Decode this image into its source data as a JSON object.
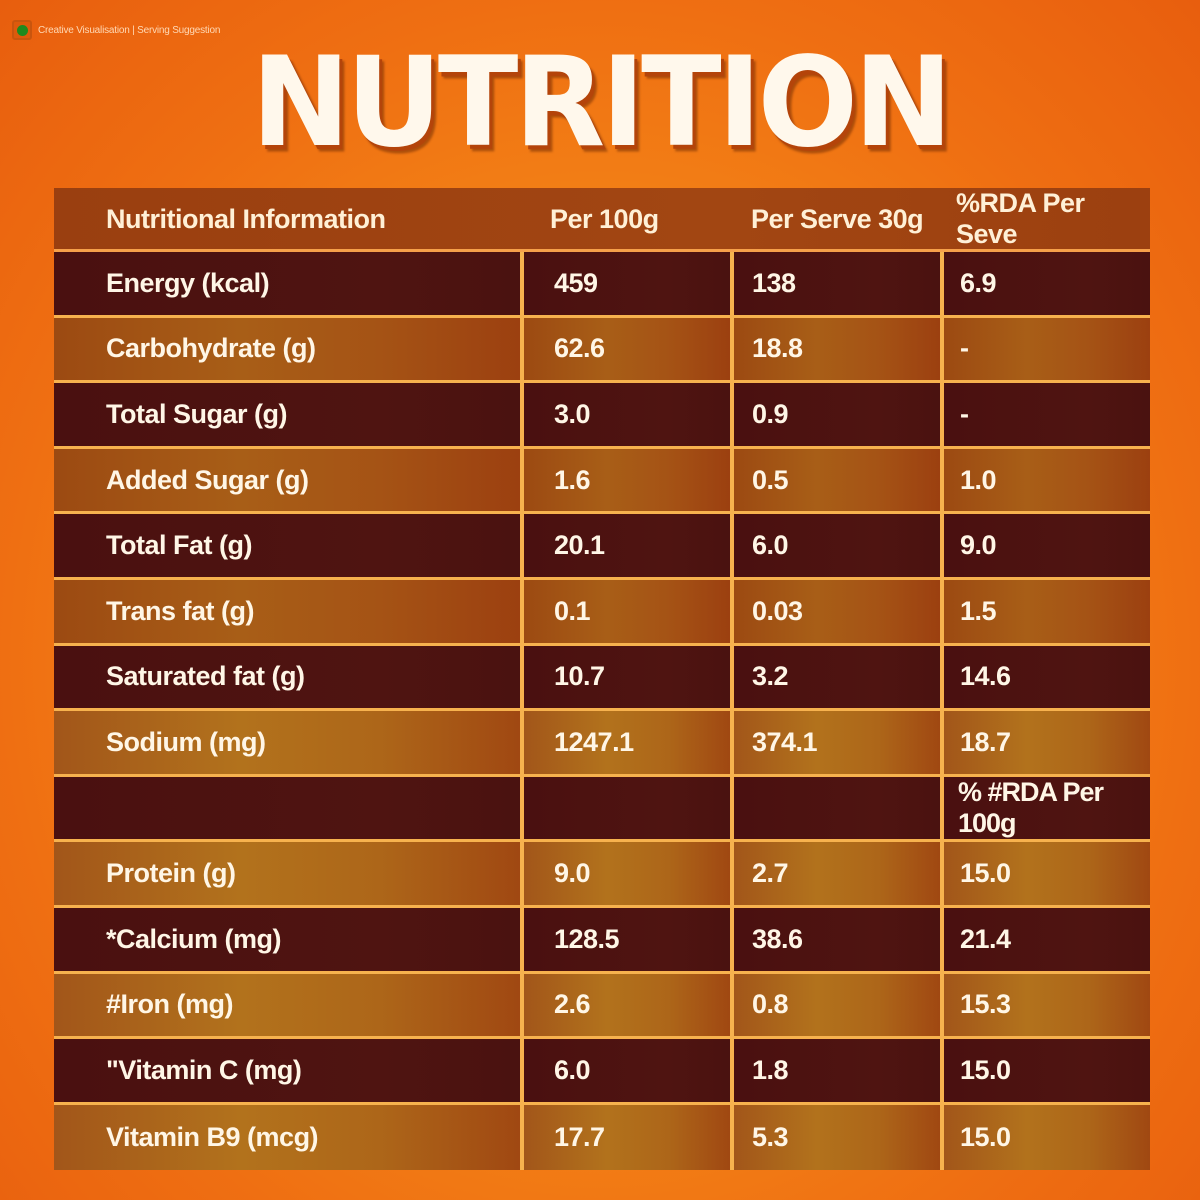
{
  "badge": {
    "icon": "veg-mark-icon",
    "text": "Creative Visualisation | Serving Suggestion"
  },
  "title": "NUTRITION",
  "colors": {
    "background": "#f58a18",
    "row_dark": "#4a1010",
    "row_light": "#a85e17",
    "grid_lines": "#f7b24e",
    "text": "#fff6e6"
  },
  "table": {
    "headers": [
      "Nutritional Information",
      "Per 100g",
      "Per Serve 30g",
      "%RDA Per Seve"
    ],
    "rows": [
      [
        "Energy (kcal)",
        "459",
        "138",
        "6.9"
      ],
      [
        "Carbohydrate (g)",
        "62.6",
        "18.8",
        "-"
      ],
      [
        "Total Sugar (g)",
        "3.0",
        "0.9",
        "-"
      ],
      [
        "Added Sugar (g)",
        "1.6",
        "0.5",
        "1.0"
      ],
      [
        "Total Fat (g)",
        "20.1",
        "6.0",
        "9.0"
      ],
      [
        "Trans fat (g)",
        "0.1",
        "0.03",
        "1.5"
      ],
      [
        "Saturated fat (g)",
        "10.7",
        "3.2",
        "14.6"
      ],
      [
        "Sodium (mg)",
        "1247.1",
        "374.1",
        "18.7"
      ],
      [
        "",
        "",
        "",
        "% #RDA Per 100g"
      ],
      [
        "Protein (g)",
        "9.0",
        "2.7",
        "15.0"
      ],
      [
        "*Calcium (mg)",
        "128.5",
        "38.6",
        "21.4"
      ],
      [
        "#Iron (mg)",
        "2.6",
        "0.8",
        "15.3"
      ],
      [
        "\"Vitamin C (mg)",
        "6.0",
        "1.8",
        "15.0"
      ],
      [
        "Vitamin B9 (mcg)",
        "17.7",
        "5.3",
        "15.0"
      ]
    ]
  }
}
